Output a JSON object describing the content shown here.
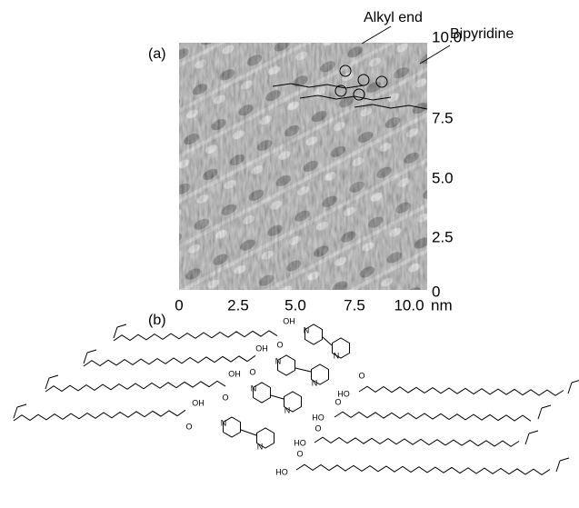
{
  "panel_a": {
    "label": "(a)",
    "annotations": [
      "Alkyl end",
      "Bipyridine"
    ],
    "y_ticks": [
      "10.0",
      "7.5",
      "5.0",
      "2.5",
      "0"
    ],
    "x_ticks": [
      "0",
      "2.5",
      "5.0",
      "7.5",
      "10.0"
    ],
    "x_unit": "nm"
  },
  "panel_b": {
    "label": "(b)",
    "structure_labels": [
      "OH",
      "O",
      "OH",
      "O",
      "OH",
      "O",
      "OH",
      "O",
      "N",
      "N",
      "N",
      "N",
      "N",
      "N",
      "N",
      "N",
      "O",
      "HO",
      "O",
      "HO",
      "O",
      "HO",
      "O",
      "HO"
    ]
  }
}
